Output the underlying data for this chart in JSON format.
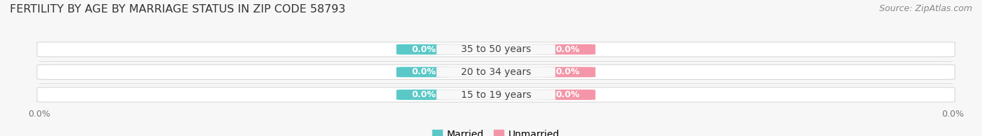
{
  "title": "FERTILITY BY AGE BY MARRIAGE STATUS IN ZIP CODE 58793",
  "source": "Source: ZipAtlas.com",
  "categories": [
    "15 to 19 years",
    "20 to 34 years",
    "35 to 50 years"
  ],
  "married_values": [
    0.0,
    0.0,
    0.0
  ],
  "unmarried_values": [
    0.0,
    0.0,
    0.0
  ],
  "married_color": "#5bc8c8",
  "unmarried_color": "#f496a8",
  "bar_bg_color": "#eeeeee",
  "background_color": "#f7f7f7",
  "center_label_bg": "#f0f0f0",
  "title_fontsize": 11.5,
  "source_fontsize": 9,
  "bar_label_fontsize": 9,
  "cat_label_fontsize": 10,
  "axis_tick_fontsize": 9,
  "legend_fontsize": 10,
  "legend_married": "Married",
  "legend_unmarried": "Unmarried"
}
